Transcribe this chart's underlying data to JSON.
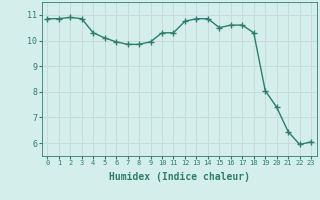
{
  "x": [
    0,
    1,
    2,
    3,
    4,
    5,
    6,
    7,
    8,
    9,
    10,
    11,
    12,
    13,
    14,
    15,
    16,
    17,
    18,
    19,
    20,
    21,
    22,
    23
  ],
  "y": [
    10.85,
    10.85,
    10.9,
    10.85,
    10.3,
    10.1,
    9.95,
    9.85,
    9.85,
    9.95,
    10.3,
    10.3,
    10.75,
    10.85,
    10.85,
    10.5,
    10.6,
    10.6,
    10.3,
    8.05,
    7.4,
    6.45,
    5.95,
    6.05
  ],
  "line_color": "#2e7d6e",
  "marker": "+",
  "marker_size": 4,
  "bg_color": "#d4eeeb",
  "grid_color": "#c8dbd8",
  "tick_color": "#2e7d6e",
  "label_color": "#2e7d6e",
  "xlabel": "Humidex (Indice chaleur)",
  "xlabel_fontsize": 7,
  "xlim": [
    -0.5,
    23.5
  ],
  "ylim": [
    5.5,
    11.5
  ],
  "yticks": [
    6,
    7,
    8,
    9,
    10,
    11
  ],
  "xticks": [
    0,
    1,
    2,
    3,
    4,
    5,
    6,
    7,
    8,
    9,
    10,
    11,
    12,
    13,
    14,
    15,
    16,
    17,
    18,
    19,
    20,
    21,
    22,
    23
  ],
  "line_width": 1.0
}
